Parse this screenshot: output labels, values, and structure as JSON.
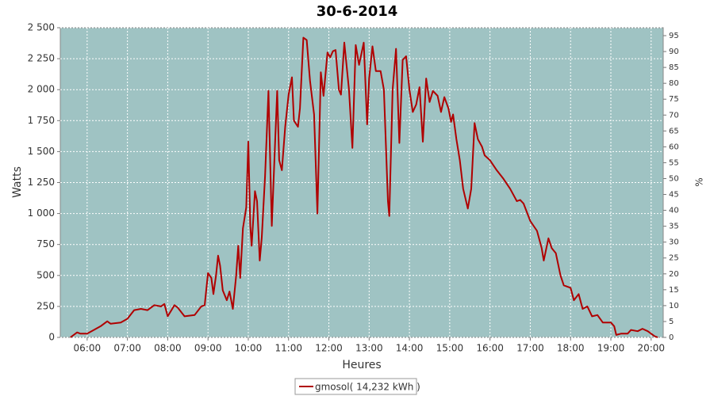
{
  "chart_data": {
    "type": "line",
    "title": "30-6-2014",
    "x_label": "Heures",
    "y_label": "Watts",
    "y2_label": "%",
    "x": [
      335,
      345,
      350,
      360,
      370,
      380,
      390,
      395,
      410,
      420,
      430,
      440,
      450,
      460,
      470,
      475,
      480,
      490,
      495,
      505,
      520,
      530,
      535,
      540,
      545,
      548,
      552,
      555,
      558,
      562,
      568,
      572,
      577,
      582,
      585,
      588,
      592,
      597,
      600,
      603,
      605,
      610,
      613,
      617,
      620,
      625,
      630,
      635,
      640,
      643,
      646,
      650,
      655,
      660,
      665,
      668,
      674,
      677,
      682,
      687,
      692,
      698,
      703,
      708,
      712,
      718,
      722,
      726,
      730,
      735,
      738,
      743,
      750,
      755,
      760,
      765,
      772,
      777,
      780,
      785,
      790,
      797,
      802,
      808,
      810,
      815,
      820,
      825,
      830,
      835,
      840,
      845,
      850,
      855,
      860,
      865,
      870,
      875,
      882,
      887,
      892,
      898,
      902,
      905,
      910,
      915,
      920,
      927,
      932,
      937,
      942,
      948,
      952,
      960,
      970,
      980,
      990,
      1000,
      1005,
      1010,
      1020,
      1030,
      1037,
      1040,
      1047,
      1052,
      1058,
      1065,
      1070,
      1080,
      1085,
      1092,
      1098,
      1105,
      1112,
      1120,
      1128,
      1135,
      1140,
      1145,
      1148,
      1155,
      1165,
      1170,
      1180,
      1187,
      1195,
      1200,
      1205,
      1210
    ],
    "series": [
      {
        "name": "gmosol( 14,232 kWh )",
        "color": "#b00000",
        "values": [
          0,
          40,
          30,
          30,
          60,
          90,
          130,
          110,
          120,
          150,
          220,
          230,
          220,
          260,
          250,
          270,
          170,
          260,
          240,
          170,
          180,
          250,
          260,
          520,
          480,
          350,
          500,
          660,
          580,
          380,
          300,
          370,
          230,
          500,
          740,
          480,
          880,
          1050,
          1580,
          900,
          740,
          1180,
          1100,
          620,
          800,
          1300,
          1990,
          900,
          1580,
          1990,
          1430,
          1350,
          1700,
          1960,
          2100,
          1750,
          1700,
          1850,
          2420,
          2400,
          2070,
          1800,
          1000,
          2140,
          1950,
          2300,
          2260,
          2310,
          2320,
          2000,
          1960,
          2380,
          2000,
          1530,
          2360,
          2200,
          2380,
          1720,
          2090,
          2350,
          2150,
          2150,
          2000,
          1100,
          980,
          2000,
          2330,
          1570,
          2240,
          2270,
          2000,
          1820,
          1880,
          2020,
          1580,
          2090,
          1900,
          1990,
          1950,
          1820,
          1940,
          1850,
          1740,
          1800,
          1600,
          1430,
          1200,
          1040,
          1200,
          1730,
          1600,
          1540,
          1470,
          1430,
          1350,
          1280,
          1200,
          1100,
          1110,
          1080,
          940,
          860,
          720,
          620,
          800,
          720,
          680,
          500,
          420,
          400,
          300,
          350,
          230,
          250,
          170,
          180,
          120,
          120,
          120,
          90,
          20,
          30,
          30,
          60,
          50,
          70,
          50,
          30,
          10,
          0
        ]
      }
    ],
    "xlim": [
      320,
      1218
    ],
    "xticks": [
      {
        "value": 360,
        "label": "06:00"
      },
      {
        "value": 420,
        "label": "07:00"
      },
      {
        "value": 480,
        "label": "08:00"
      },
      {
        "value": 540,
        "label": "09:00"
      },
      {
        "value": 600,
        "label": "10:00"
      },
      {
        "value": 660,
        "label": "11:00"
      },
      {
        "value": 720,
        "label": "12:00"
      },
      {
        "value": 780,
        "label": "13:00"
      },
      {
        "value": 840,
        "label": "14:00"
      },
      {
        "value": 900,
        "label": "15:00"
      },
      {
        "value": 960,
        "label": "16:00"
      },
      {
        "value": 1020,
        "label": "17:00"
      },
      {
        "value": 1080,
        "label": "18:00"
      },
      {
        "value": 1140,
        "label": "19:00"
      },
      {
        "value": 1200,
        "label": "20:00"
      }
    ],
    "ylim": [
      0,
      2500
    ],
    "yticks": [
      0,
      250,
      500,
      750,
      {
        "value": 1000,
        "label": "1 000"
      },
      {
        "value": 1250,
        "label": "1 250"
      },
      {
        "value": 1500,
        "label": "1 500"
      },
      {
        "value": 1750,
        "label": "1 750"
      },
      {
        "value": 2000,
        "label": "2 000"
      },
      {
        "value": 2250,
        "label": "2 250"
      },
      {
        "value": 2500,
        "label": "2 500"
      }
    ],
    "y2lim": [
      0,
      97.5
    ],
    "y2ticks": [
      0,
      5,
      10,
      15,
      20,
      25,
      30,
      35,
      40,
      45,
      50,
      55,
      60,
      65,
      70,
      75,
      80,
      85,
      90,
      95
    ],
    "grid": true,
    "legend": "bottom"
  }
}
